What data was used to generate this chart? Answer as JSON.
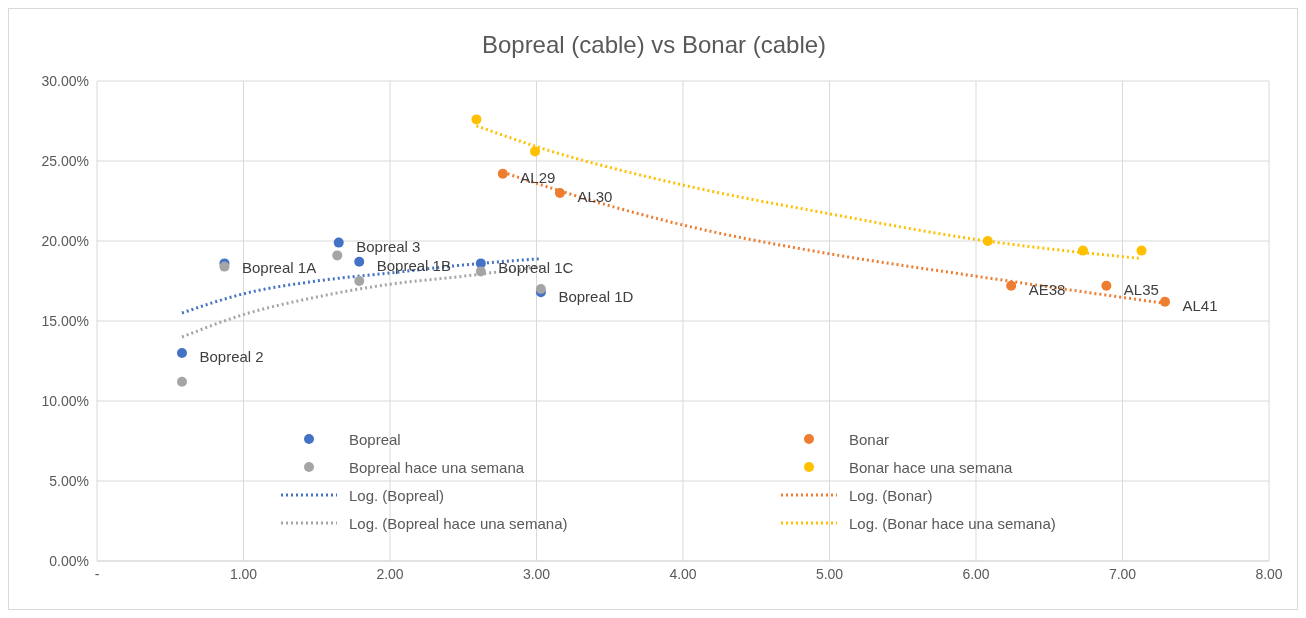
{
  "chart_data": {
    "type": "scatter",
    "title": "Bopreal (cable) vs Bonar (cable)",
    "xlim": [
      0,
      8
    ],
    "xticks": [
      {
        "value": 0,
        "label": "-"
      },
      {
        "value": 1,
        "label": "1.00"
      },
      {
        "value": 2,
        "label": "2.00"
      },
      {
        "value": 3,
        "label": "3.00"
      },
      {
        "value": 4,
        "label": "4.00"
      },
      {
        "value": 5,
        "label": "5.00"
      },
      {
        "value": 6,
        "label": "6.00"
      },
      {
        "value": 7,
        "label": "7.00"
      },
      {
        "value": 8,
        "label": "8.00"
      }
    ],
    "ylim": [
      0,
      30
    ],
    "yticks": [
      {
        "value": 0,
        "label": "0.00%"
      },
      {
        "value": 5,
        "label": "5.00%"
      },
      {
        "value": 10,
        "label": "10.00%"
      },
      {
        "value": 15,
        "label": "15.00%"
      },
      {
        "value": 20,
        "label": "20.00%"
      },
      {
        "value": 25,
        "label": "25.00%"
      },
      {
        "value": 30,
        "label": "30.00%"
      }
    ],
    "grid": true,
    "legend": "bottom",
    "series": [
      {
        "name": "Bopreal",
        "marker": "circle",
        "color": "#4472c4",
        "x": [
          0.58,
          0.87,
          1.65,
          1.79,
          2.62,
          3.03
        ],
        "values": [
          13.0,
          18.6,
          19.9,
          18.7,
          18.6,
          16.8
        ],
        "value_labels": [
          "Bopreal 2",
          "Bopreal 1A",
          "Bopreal 3",
          "Bopreal 1B",
          "Bopreal 1C",
          "Bopreal 1D"
        ]
      },
      {
        "name": "Bonar",
        "marker": "circle",
        "color": "#ed7d31",
        "x": [
          2.77,
          3.16,
          6.24,
          6.89,
          7.29
        ],
        "values": [
          24.2,
          23.0,
          17.2,
          17.2,
          16.2
        ],
        "value_labels": [
          "AL29",
          "AL30",
          "AE38",
          "AL35",
          "AL41"
        ]
      },
      {
        "name": "Bopreal hace una semana",
        "marker": "circle",
        "color": "#a5a5a5",
        "x": [
          0.58,
          0.87,
          1.64,
          1.79,
          2.62,
          3.03
        ],
        "values": [
          11.2,
          18.4,
          19.1,
          17.5,
          18.1,
          17.0
        ]
      },
      {
        "name": "Bonar hace una semana",
        "marker": "circle",
        "color": "#ffc000",
        "x": [
          2.59,
          2.99,
          6.08,
          6.73,
          7.13
        ],
        "values": [
          27.6,
          25.6,
          20.0,
          19.4,
          19.4
        ]
      },
      {
        "name": "Log. (Bopreal)",
        "type": "line",
        "marker": "none",
        "line_style": "dotted",
        "color": "#4472c4",
        "x": [
          0.58,
          1.0,
          1.5,
          2.0,
          2.5,
          3.03
        ],
        "values": [
          15.5,
          16.7,
          17.5,
          18.0,
          18.5,
          18.9
        ]
      },
      {
        "name": "Log. (Bonar)",
        "type": "line",
        "marker": "none",
        "line_style": "dotted",
        "color": "#ed7d31",
        "x": [
          2.77,
          3.5,
          4.0,
          5.0,
          6.0,
          7.29
        ],
        "values": [
          24.3,
          22.2,
          21.0,
          19.2,
          17.8,
          16.1
        ]
      },
      {
        "name": "Log. (Bopreal hace una semana)",
        "type": "line",
        "marker": "none",
        "line_style": "dotted",
        "color": "#a5a5a5",
        "x": [
          0.58,
          1.0,
          1.5,
          2.0,
          2.5,
          3.03
        ],
        "values": [
          14.0,
          15.4,
          16.5,
          17.3,
          17.8,
          18.4
        ]
      },
      {
        "name": "Log. (Bonar hace una semana)",
        "type": "line",
        "marker": "none",
        "line_style": "dotted",
        "color": "#ffc000",
        "x": [
          2.59,
          3.0,
          4.0,
          5.0,
          6.0,
          7.13
        ],
        "values": [
          27.2,
          25.9,
          23.5,
          21.7,
          20.1,
          18.9
        ]
      }
    ]
  }
}
